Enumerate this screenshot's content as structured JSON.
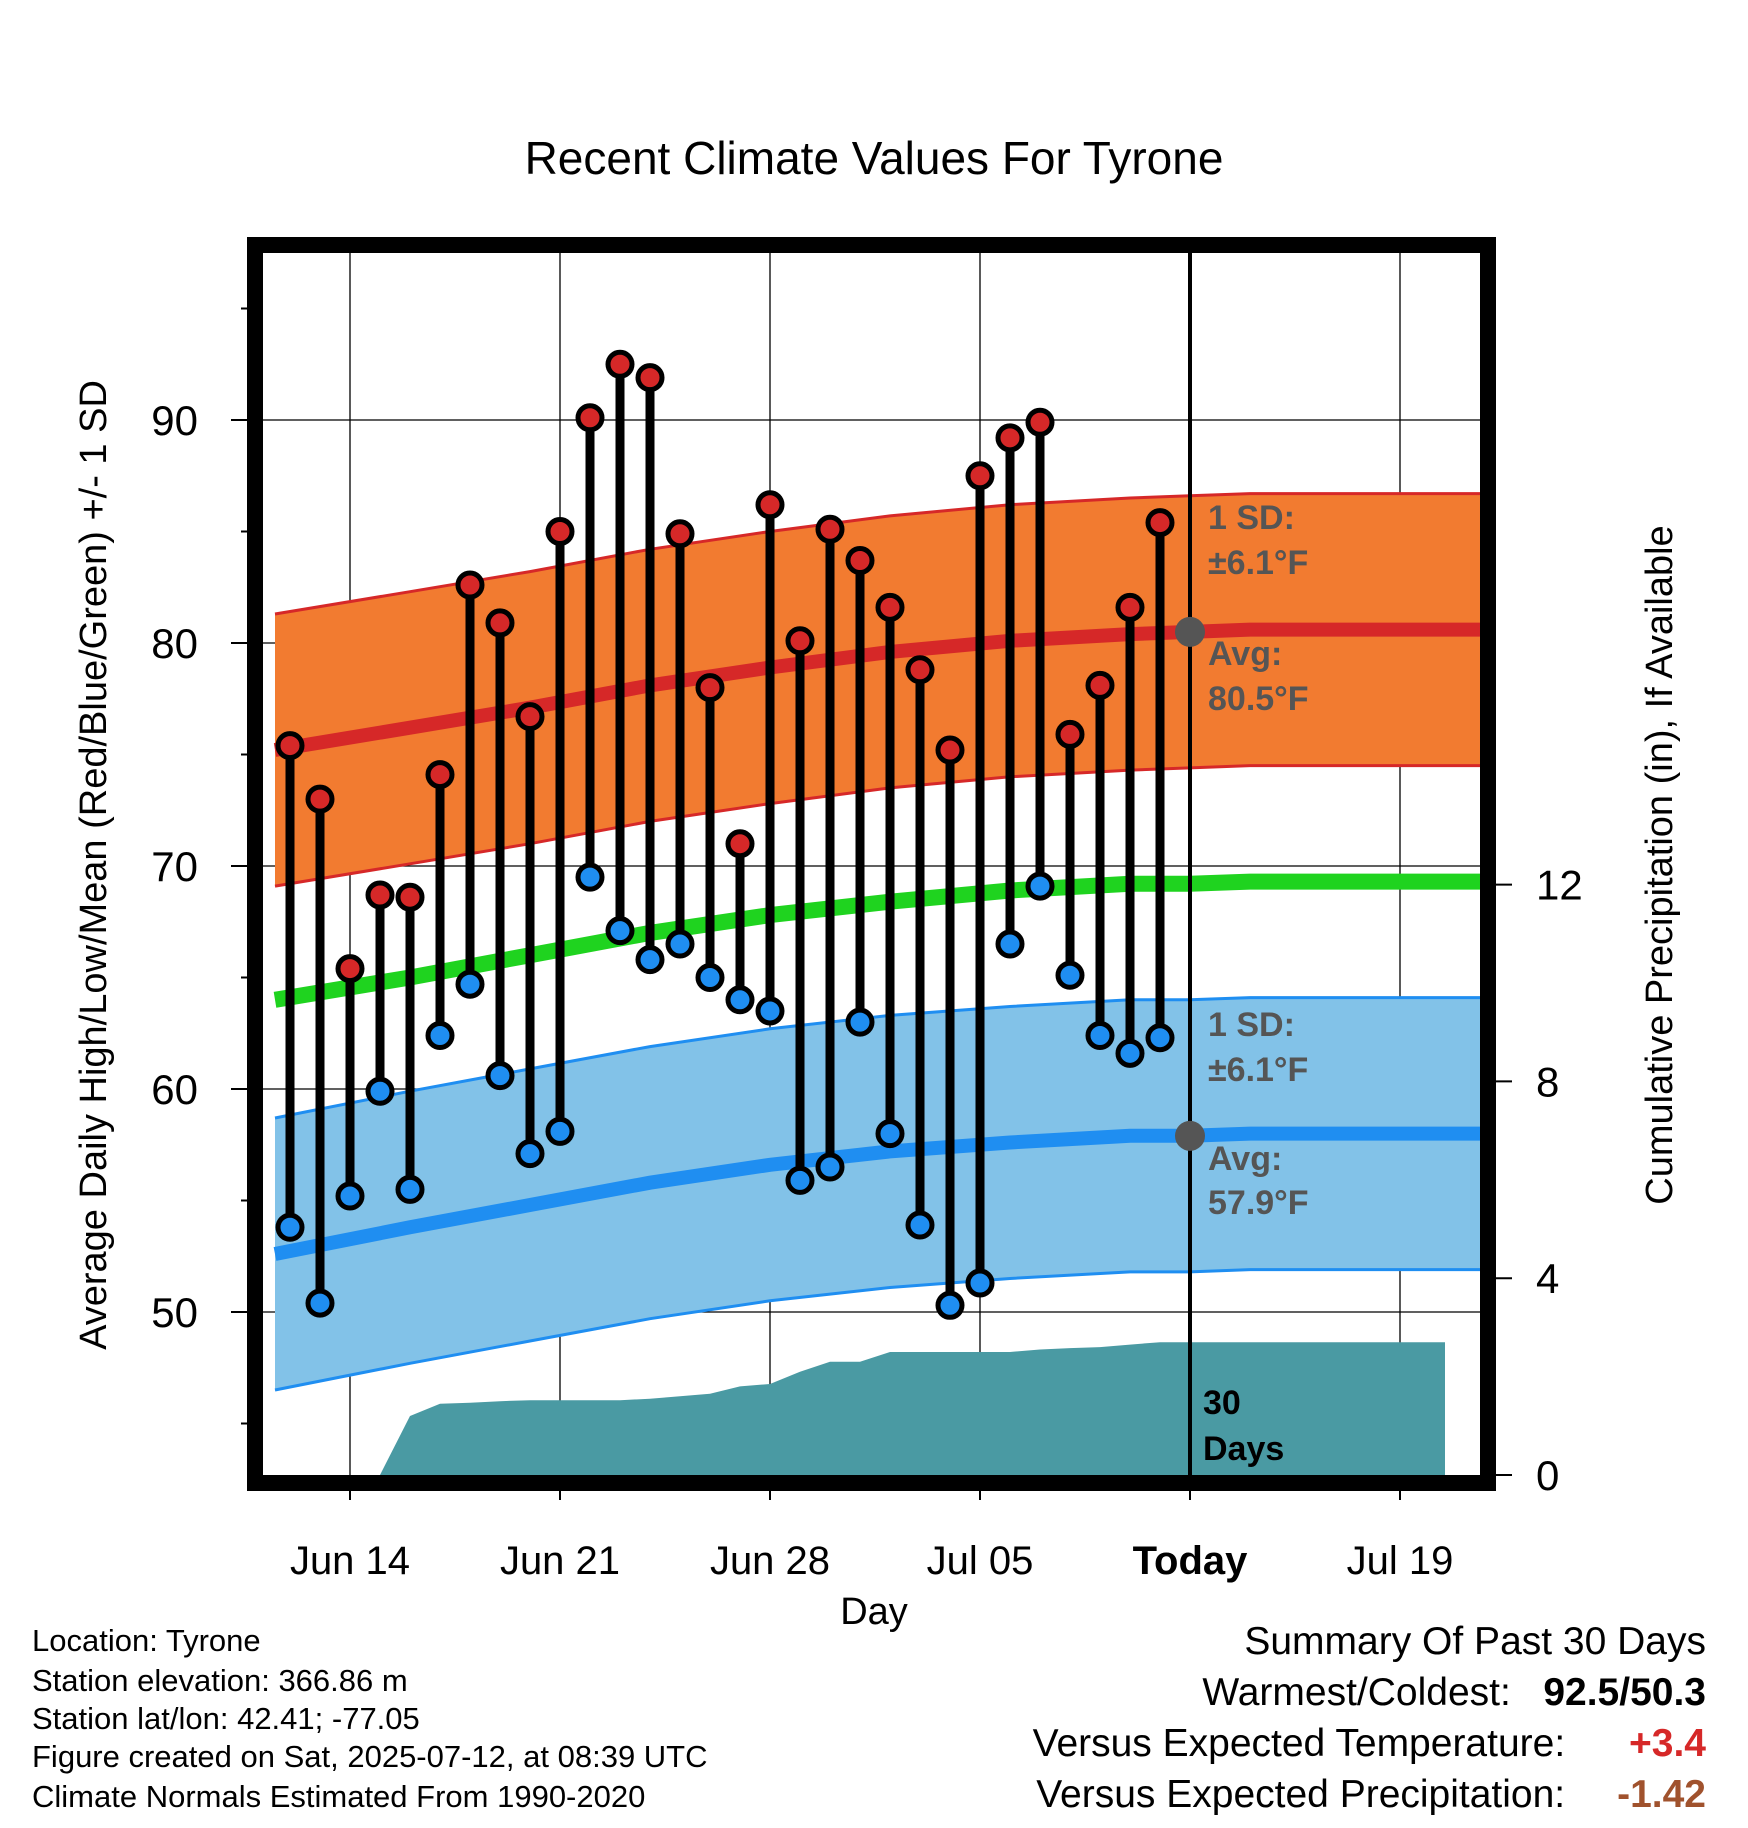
{
  "chart_data": {
    "type": "line",
    "title": "Recent Climate Values For Tyrone",
    "xlabel": "Day",
    "ylabel": "Average Daily High/Low/Mean (Red/Blue/Green) +/- 1 SD",
    "y2label": "Cumulative Precipitation (in), If Available",
    "ylim": [
      42.5,
      98
    ],
    "y2lim": [
      0,
      28.2
    ],
    "yticks": [
      50,
      60,
      70,
      80,
      90
    ],
    "y2ticks": [
      0,
      4,
      8,
      12
    ],
    "xlim": [
      -4.5,
      36.5
    ],
    "xticks": [
      {
        "day": 0,
        "label": "Jun 14"
      },
      {
        "day": 7,
        "label": "Jun 21"
      },
      {
        "day": 14,
        "label": "Jun 28"
      },
      {
        "day": 21,
        "label": "Jul 05"
      },
      {
        "day": 28,
        "label": "Today"
      },
      {
        "day": 35,
        "label": "Jul 19"
      }
    ],
    "grid": true,
    "days": [
      -2,
      -1,
      0,
      1,
      2,
      3,
      4,
      5,
      6,
      7,
      8,
      9,
      10,
      11,
      12,
      13,
      14,
      15,
      16,
      17,
      18,
      19,
      20,
      21,
      22,
      23,
      24,
      25,
      26,
      27
    ],
    "highs": [
      75.4,
      73.0,
      65.4,
      68.7,
      68.6,
      74.1,
      82.6,
      80.9,
      76.7,
      85.0,
      90.1,
      92.5,
      91.9,
      84.9,
      78.0,
      71.0,
      86.2,
      80.1,
      85.1,
      83.7,
      81.6,
      78.8,
      75.2,
      87.5,
      89.2,
      89.9,
      75.9,
      78.1,
      81.6,
      85.4
    ],
    "lows": [
      53.8,
      50.4,
      55.2,
      59.9,
      55.5,
      62.4,
      64.7,
      60.6,
      57.1,
      58.1,
      69.5,
      67.1,
      65.8,
      66.5,
      65.0,
      64.0,
      63.5,
      55.9,
      56.5,
      63.0,
      58.0,
      53.9,
      50.3,
      51.3,
      66.5,
      69.1,
      65.1,
      62.4,
      61.6,
      62.3
    ],
    "normals_day": [
      -2.5,
      2,
      6,
      10,
      14,
      18,
      22,
      26,
      28,
      30,
      34,
      38
    ],
    "normal_high": [
      75.2,
      76.2,
      77.1,
      78.1,
      78.9,
      79.6,
      80.1,
      80.4,
      80.5,
      80.6,
      80.6,
      80.6
    ],
    "normal_low": [
      52.6,
      53.8,
      54.8,
      55.8,
      56.6,
      57.2,
      57.6,
      57.9,
      57.9,
      58.0,
      58.0,
      58.0
    ],
    "normal_mean": [
      64.0,
      65.0,
      66.0,
      67.0,
      67.8,
      68.4,
      68.9,
      69.2,
      69.2,
      69.3,
      69.3,
      69.3
    ],
    "sd_high": 6.1,
    "sd_low": 6.1,
    "precip_day": [
      1,
      2,
      3,
      4,
      5,
      6,
      7,
      8,
      9,
      10,
      11,
      12,
      13,
      14,
      15,
      16,
      17,
      18,
      19,
      20,
      21,
      22,
      23,
      24,
      25,
      26,
      27,
      28,
      36.5
    ],
    "precip_cum": [
      0.0,
      1.2,
      1.45,
      1.47,
      1.5,
      1.52,
      1.52,
      1.52,
      1.52,
      1.55,
      1.6,
      1.65,
      1.8,
      1.85,
      2.1,
      2.3,
      2.3,
      2.5,
      2.5,
      2.5,
      2.5,
      2.5,
      2.55,
      2.58,
      2.6,
      2.65,
      2.7,
      2.7,
      2.7
    ],
    "annotations": {
      "high_sd_label": "1 SD:",
      "high_sd_value": "±6.1°F",
      "high_avg_label": "Avg:",
      "high_avg_value": "80.5°F",
      "low_sd_label": "1 SD:",
      "low_sd_value": "±6.1°F",
      "low_avg_label": "Avg:",
      "low_avg_value": "57.9°F",
      "window_label_1": "30",
      "window_label_2": "Days"
    },
    "today_day": 28,
    "colors": {
      "high_band": "#f27b30",
      "high_line": "#d62828",
      "low_band": "#82c2e8",
      "low_line": "#1f8ef1",
      "mean_line": "#1fd31f",
      "precip": "#4a9aa3",
      "high_marker": "#d62828",
      "low_marker": "#1f8ef1",
      "annotation": "#555555"
    }
  },
  "station_info": {
    "location": "Location: Tyrone",
    "elevation": "Station elevation: 366.86 m",
    "latlon": "Station lat/lon: 42.41; -77.05",
    "created": "Figure created on Sat, 2025-07-12, at 08:39 UTC",
    "normals": "Climate Normals Estimated From 1990-2020"
  },
  "summary": {
    "title": "Summary Of Past 30 Days",
    "warmest_coldest_label": "Warmest/Coldest:",
    "warmest_coldest_value": "92.5/50.3",
    "temp_label": "Versus Expected Temperature:",
    "temp_value": "+3.4",
    "temp_color": "#d62828",
    "precip_label": "Versus Expected Precipitation:",
    "precip_value": "-1.42",
    "precip_color": "#a0522d"
  }
}
